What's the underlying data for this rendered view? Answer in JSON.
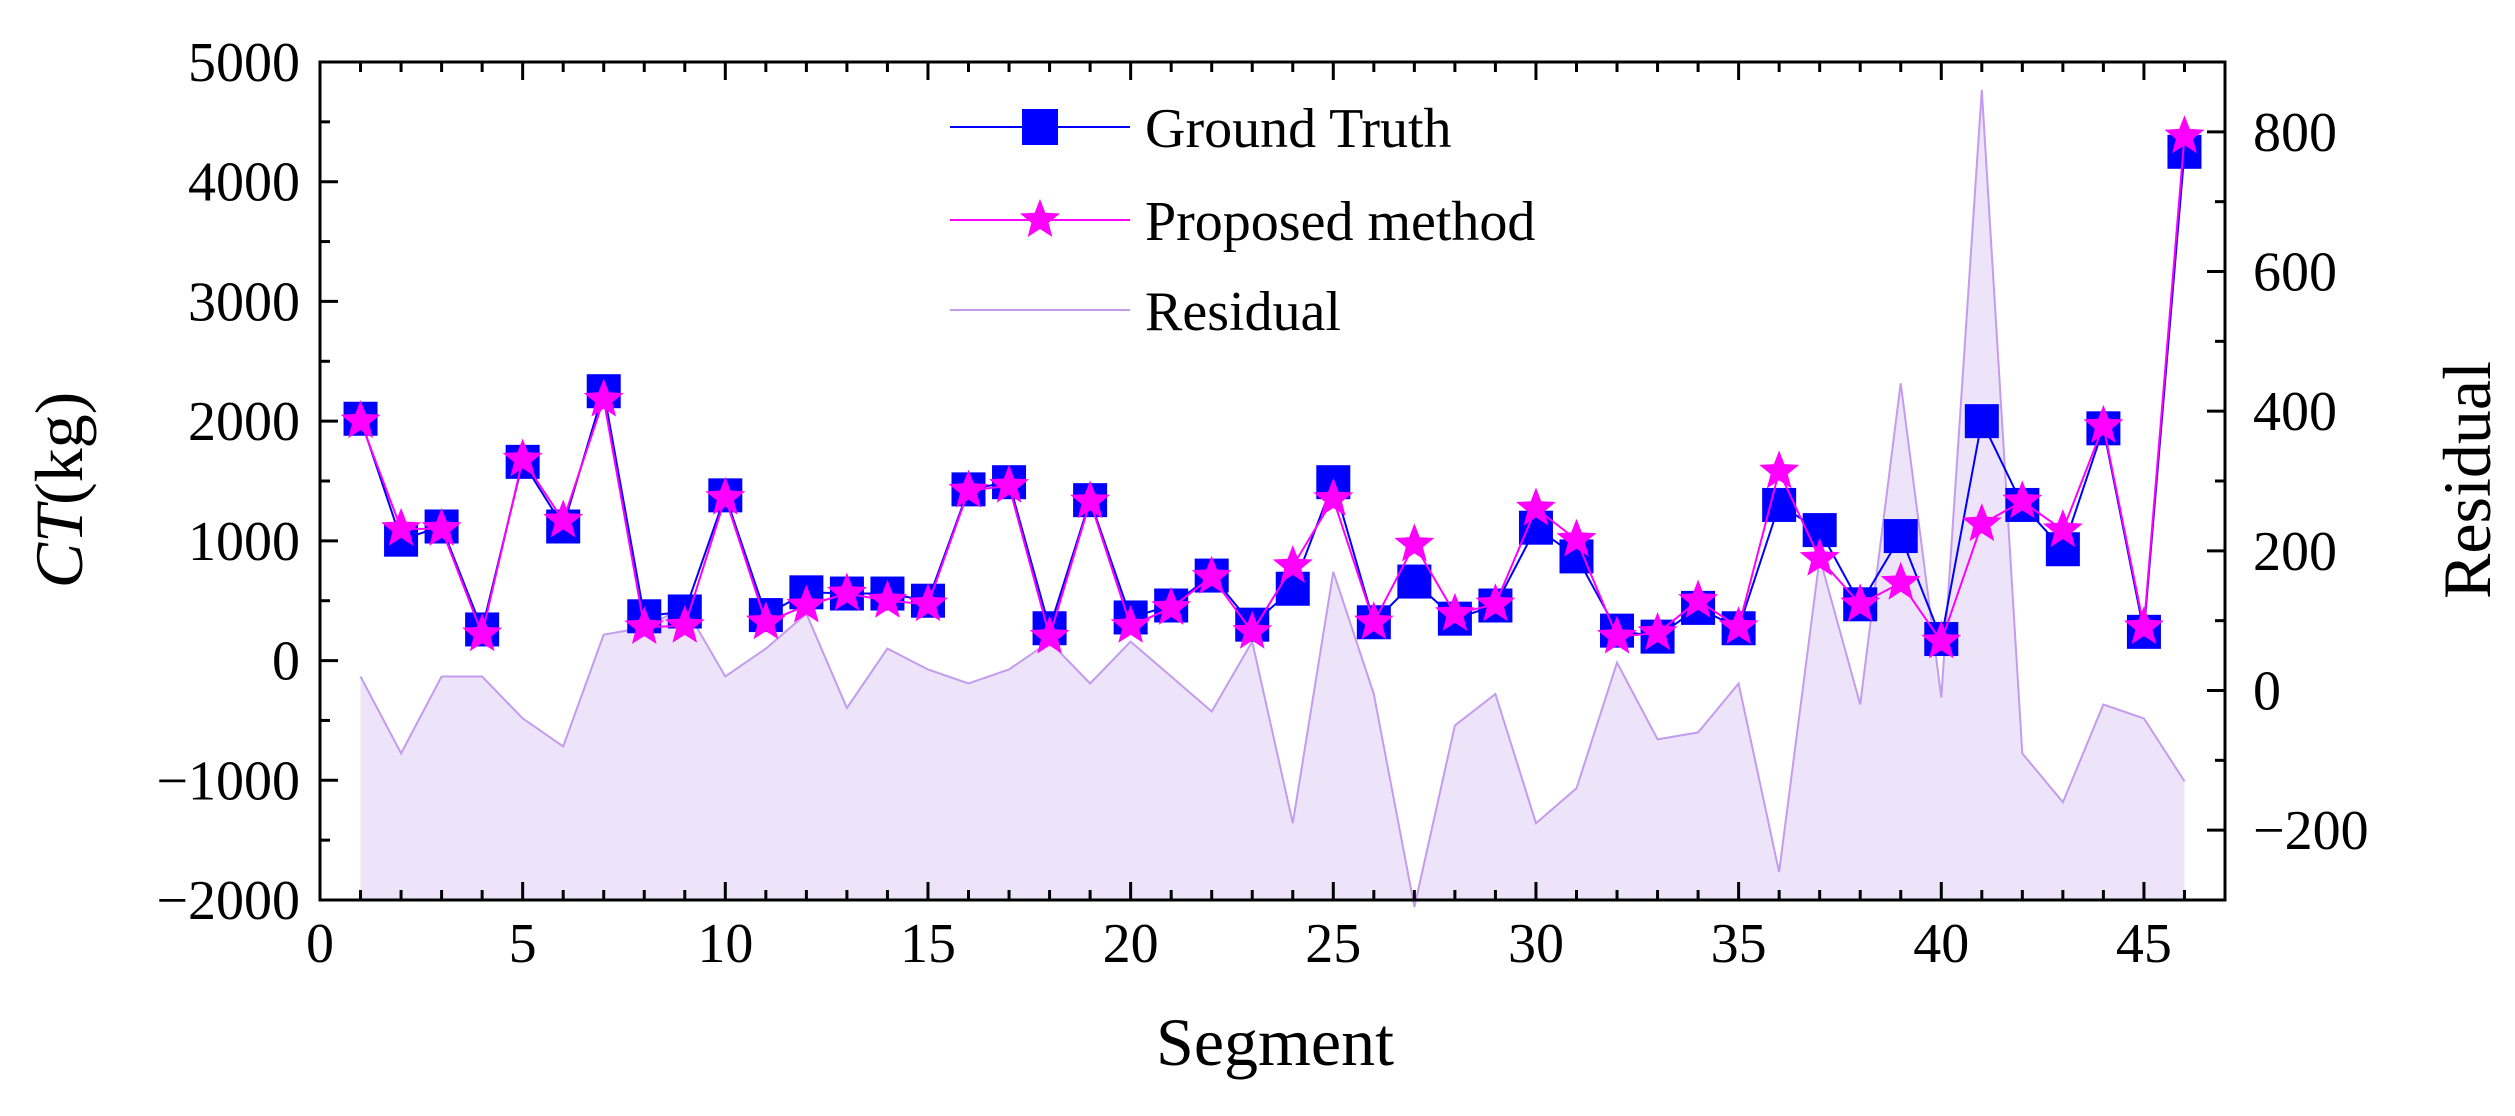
{
  "chart_data": {
    "type": "line",
    "title": "",
    "xlabel": "Segment",
    "ylabel_italic": "CT",
    "ylabel_unit": "(kg)",
    "y2label": "Residual",
    "xlim": [
      0,
      47
    ],
    "ylim": [
      -2000,
      5000
    ],
    "y2lim": [
      -300,
      900
    ],
    "x_ticks": [
      0,
      5,
      10,
      15,
      20,
      25,
      30,
      35,
      40,
      45
    ],
    "y_ticks": [
      -2000,
      -1000,
      0,
      1000,
      2000,
      3000,
      4000,
      5000
    ],
    "y2_ticks": [
      -200,
      0,
      200,
      400,
      600,
      800
    ],
    "legend_position": "top-center",
    "x": [
      1,
      2,
      3,
      4,
      5,
      6,
      7,
      8,
      9,
      10,
      11,
      12,
      13,
      14,
      15,
      16,
      17,
      18,
      19,
      20,
      21,
      22,
      23,
      24,
      25,
      26,
      27,
      28,
      29,
      30,
      31,
      32,
      33,
      34,
      35,
      36,
      37,
      38,
      39,
      40,
      41,
      42,
      43,
      44,
      45,
      46
    ],
    "series": [
      {
        "name": "Ground Truth",
        "axis": "left",
        "marker": "square",
        "color": "#0000ff",
        "values": [
          2020,
          1010,
          1120,
          260,
          1660,
          1120,
          2250,
          370,
          410,
          1380,
          380,
          570,
          560,
          560,
          500,
          1430,
          1490,
          270,
          1340,
          360,
          460,
          710,
          300,
          600,
          1490,
          320,
          660,
          350,
          460,
          1110,
          870,
          250,
          200,
          440,
          270,
          1300,
          1090,
          470,
          1040,
          180,
          2000,
          1300,
          930,
          1940,
          240,
          4250
        ]
      },
      {
        "name": "Proposed method",
        "axis": "left",
        "marker": "star",
        "color": "#ff00ff",
        "values": [
          2000,
          1100,
          1100,
          220,
          1680,
          1170,
          2180,
          280,
          290,
          1360,
          320,
          460,
          560,
          500,
          470,
          1420,
          1460,
          200,
          1330,
          290,
          440,
          700,
          240,
          790,
          1350,
          320,
          970,
          390,
          470,
          1270,
          1010,
          200,
          230,
          500,
          280,
          1580,
          850,
          470,
          650,
          160,
          1140,
          1330,
          1090,
          1960,
          280,
          4380
        ]
      },
      {
        "name": "Residual",
        "axis": "right",
        "type": "area",
        "color": "#c49bee",
        "fill": "#ede4fa",
        "values": [
          20,
          -90,
          20,
          20,
          -40,
          -80,
          80,
          90,
          120,
          20,
          60,
          110,
          -25,
          60,
          30,
          10,
          30,
          70,
          10,
          70,
          20,
          -30,
          70,
          -190,
          170,
          -5,
          -310,
          -50,
          -5,
          -190,
          -140,
          40,
          -70,
          -60,
          10,
          -260,
          190,
          -20,
          440,
          -10,
          860,
          -90,
          -160,
          -20,
          -40,
          -130
        ]
      }
    ]
  }
}
